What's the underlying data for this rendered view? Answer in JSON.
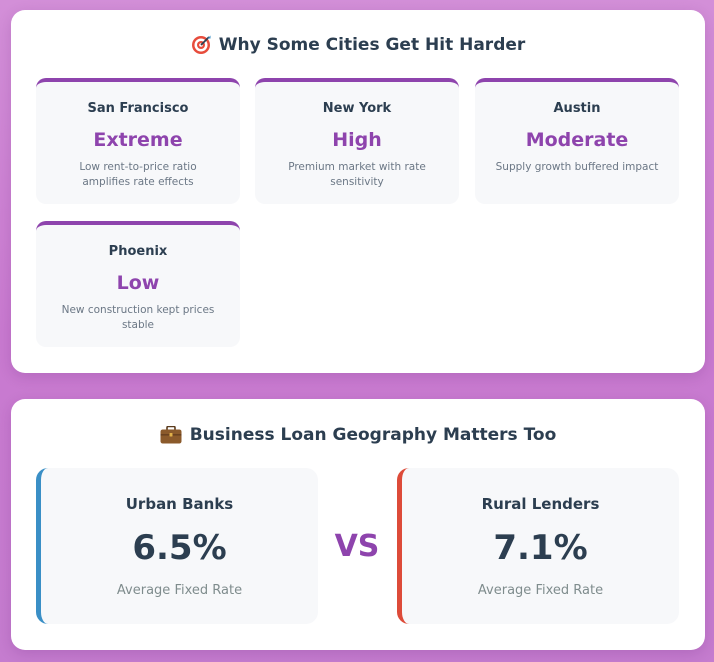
{
  "cities_section": {
    "title": "Why Some Cities Get Hit Harder",
    "icon": "target-icon",
    "cities": [
      {
        "name": "San Francisco",
        "level": "Extreme",
        "desc": "Low rent-to-price ratio amplifies rate effects"
      },
      {
        "name": "New York",
        "level": "High",
        "desc": "Premium market with rate sensitivity"
      },
      {
        "name": "Austin",
        "level": "Moderate",
        "desc": "Supply growth buffered impact"
      },
      {
        "name": "Phoenix",
        "level": "Low",
        "desc": "New construction kept prices stable"
      }
    ]
  },
  "business_section": {
    "title": "Business Loan Geography Matters Too",
    "icon": "briefcase-icon",
    "vs": "VS",
    "urban": {
      "title": "Urban Banks",
      "value": "6.5%",
      "caption": "Average Fixed Rate",
      "color": "#3a8fc6"
    },
    "rural": {
      "title": "Rural Lenders",
      "value": "7.1%",
      "caption": "Average Fixed Rate",
      "color": "#dd4b39"
    }
  },
  "colors": {
    "accent": "#8e44ad",
    "text": "#2c3e50",
    "muted": "#6b7785",
    "card_bg": "#f7f8fa"
  }
}
